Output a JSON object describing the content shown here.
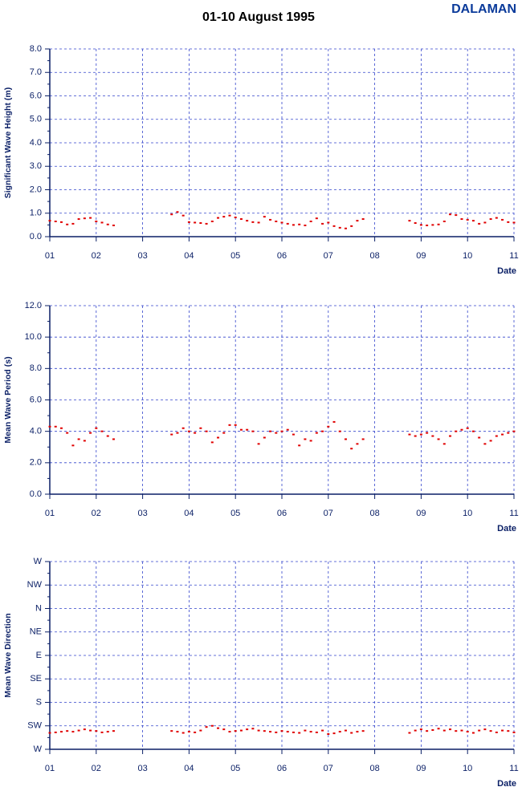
{
  "title": "01-10 August 1995",
  "station": "DALAMAN",
  "chart_data": [
    {
      "type": "scatter",
      "y_label": "Significant Wave Height (m)",
      "x_label": "Date",
      "color": "#e00000",
      "grid": true,
      "xlim": [
        1,
        11
      ],
      "xticks": [
        {
          "value": 1,
          "label": "01"
        },
        {
          "value": 2,
          "label": "02"
        },
        {
          "value": 3,
          "label": "03"
        },
        {
          "value": 4,
          "label": "04"
        },
        {
          "value": 5,
          "label": "05"
        },
        {
          "value": 6,
          "label": "06"
        },
        {
          "value": 7,
          "label": "07"
        },
        {
          "value": 8,
          "label": "08"
        },
        {
          "value": 9,
          "label": "09"
        },
        {
          "value": 10,
          "label": "10"
        },
        {
          "value": 11,
          "label": "11"
        }
      ],
      "ylim": [
        0,
        8
      ],
      "yticks": [
        {
          "value": 0,
          "label": "0.0"
        },
        {
          "value": 1,
          "label": "1.0"
        },
        {
          "value": 2,
          "label": "2.0"
        },
        {
          "value": 3,
          "label": "3.0"
        },
        {
          "value": 4,
          "label": "4.0"
        },
        {
          "value": 5,
          "label": "5.0"
        },
        {
          "value": 6,
          "label": "6.0"
        },
        {
          "value": 7,
          "label": "7.0"
        },
        {
          "value": 8,
          "label": "8.0"
        }
      ],
      "x": [
        1,
        1.125,
        1.25,
        1.375,
        1.5,
        1.625,
        1.75,
        1.875,
        2,
        2.125,
        2.25,
        2.375,
        3.625,
        3.75,
        3.875,
        4,
        4.125,
        4.25,
        4.375,
        4.5,
        4.625,
        4.75,
        4.875,
        5,
        5.125,
        5.25,
        5.375,
        5.5,
        5.625,
        5.75,
        5.875,
        6,
        6.125,
        6.25,
        6.375,
        6.5,
        6.625,
        6.75,
        6.875,
        7,
        7.125,
        7.25,
        7.375,
        7.5,
        7.625,
        7.75,
        8.75,
        8.875,
        9,
        9.125,
        9.25,
        9.375,
        9.5,
        9.625,
        9.75,
        9.875,
        10,
        10.125,
        10.25,
        10.375,
        10.5,
        10.625,
        10.75,
        10.875,
        11
      ],
      "values": [
        0.68,
        0.65,
        0.62,
        0.52,
        0.55,
        0.75,
        0.78,
        0.8,
        0.65,
        0.6,
        0.52,
        0.48,
        0.95,
        1.05,
        0.9,
        0.62,
        0.6,
        0.58,
        0.55,
        0.65,
        0.8,
        0.85,
        0.9,
        0.82,
        0.75,
        0.68,
        0.62,
        0.6,
        0.85,
        0.72,
        0.65,
        0.6,
        0.55,
        0.5,
        0.52,
        0.48,
        0.65,
        0.78,
        0.55,
        0.6,
        0.45,
        0.38,
        0.35,
        0.45,
        0.68,
        0.75,
        0.68,
        0.58,
        0.5,
        0.48,
        0.5,
        0.52,
        0.65,
        0.95,
        0.92,
        0.75,
        0.72,
        0.68,
        0.55,
        0.6,
        0.75,
        0.8,
        0.72,
        0.62,
        0.6
      ]
    },
    {
      "type": "scatter",
      "y_label": "Mean Wave Period (s)",
      "x_label": "Date",
      "color": "#e00000",
      "grid": true,
      "xlim": [
        1,
        11
      ],
      "xticks": [
        {
          "value": 1,
          "label": "01"
        },
        {
          "value": 2,
          "label": "02"
        },
        {
          "value": 3,
          "label": "03"
        },
        {
          "value": 4,
          "label": "04"
        },
        {
          "value": 5,
          "label": "05"
        },
        {
          "value": 6,
          "label": "06"
        },
        {
          "value": 7,
          "label": "07"
        },
        {
          "value": 8,
          "label": "08"
        },
        {
          "value": 9,
          "label": "09"
        },
        {
          "value": 10,
          "label": "10"
        },
        {
          "value": 11,
          "label": "11"
        }
      ],
      "ylim": [
        0,
        12
      ],
      "yticks": [
        {
          "value": 0,
          "label": "0.0"
        },
        {
          "value": 2,
          "label": "2.0"
        },
        {
          "value": 4,
          "label": "4.0"
        },
        {
          "value": 6,
          "label": "6.0"
        },
        {
          "value": 8,
          "label": "8.0"
        },
        {
          "value": 10,
          "label": "10.0"
        },
        {
          "value": 12,
          "label": "12.0"
        }
      ],
      "x": [
        1,
        1.125,
        1.25,
        1.375,
        1.5,
        1.625,
        1.75,
        1.875,
        2,
        2.125,
        2.25,
        2.375,
        3.625,
        3.75,
        3.875,
        4,
        4.125,
        4.25,
        4.375,
        4.5,
        4.625,
        4.75,
        4.875,
        5,
        5.125,
        5.25,
        5.375,
        5.5,
        5.625,
        5.75,
        5.875,
        6,
        6.125,
        6.25,
        6.375,
        6.5,
        6.625,
        6.75,
        6.875,
        7,
        7.125,
        7.25,
        7.375,
        7.5,
        7.625,
        7.75,
        8.75,
        8.875,
        9,
        9.125,
        9.25,
        9.375,
        9.5,
        9.625,
        9.75,
        9.875,
        10,
        10.125,
        10.25,
        10.375,
        10.5,
        10.625,
        10.75,
        10.875,
        11
      ],
      "values": [
        4.3,
        4.3,
        4.2,
        3.9,
        3.1,
        3.5,
        3.4,
        3.9,
        4.2,
        4.0,
        3.7,
        3.5,
        3.8,
        3.9,
        4.2,
        4.0,
        3.9,
        4.2,
        4.0,
        3.3,
        3.6,
        3.9,
        4.4,
        4.4,
        4.1,
        4.1,
        4.0,
        3.2,
        3.6,
        4.0,
        3.9,
        4.0,
        4.1,
        3.8,
        3.1,
        3.5,
        3.4,
        3.9,
        4.0,
        4.3,
        4.6,
        4.0,
        3.5,
        2.9,
        3.2,
        3.5,
        3.8,
        3.7,
        3.8,
        3.9,
        3.7,
        3.5,
        3.2,
        3.7,
        4.0,
        4.1,
        4.2,
        4.0,
        3.6,
        3.2,
        3.4,
        3.7,
        3.8,
        3.9,
        4.0
      ]
    },
    {
      "type": "scatter",
      "y_label": "Mean Wave Direction",
      "x_label": "Date",
      "color": "#e00000",
      "grid": true,
      "xlim": [
        1,
        11
      ],
      "xticks": [
        {
          "value": 1,
          "label": "01"
        },
        {
          "value": 2,
          "label": "02"
        },
        {
          "value": 3,
          "label": "03"
        },
        {
          "value": 4,
          "label": "04"
        },
        {
          "value": 5,
          "label": "05"
        },
        {
          "value": 6,
          "label": "06"
        },
        {
          "value": 7,
          "label": "07"
        },
        {
          "value": 8,
          "label": "08"
        },
        {
          "value": 9,
          "label": "09"
        },
        {
          "value": 10,
          "label": "10"
        },
        {
          "value": 11,
          "label": "11"
        }
      ],
      "ylim": [
        0,
        8
      ],
      "yticks": [
        {
          "value": 0,
          "label": "W"
        },
        {
          "value": 1,
          "label": "SW"
        },
        {
          "value": 2,
          "label": "S"
        },
        {
          "value": 3,
          "label": "SE"
        },
        {
          "value": 4,
          "label": "E"
        },
        {
          "value": 5,
          "label": "NE"
        },
        {
          "value": 6,
          "label": "N"
        },
        {
          "value": 7,
          "label": "NW"
        },
        {
          "value": 8,
          "label": "W"
        }
      ],
      "x": [
        1,
        1.125,
        1.25,
        1.375,
        1.5,
        1.625,
        1.75,
        1.875,
        2,
        2.125,
        2.25,
        2.375,
        3.625,
        3.75,
        3.875,
        4,
        4.125,
        4.25,
        4.375,
        4.5,
        4.625,
        4.75,
        4.875,
        5,
        5.125,
        5.25,
        5.375,
        5.5,
        5.625,
        5.75,
        5.875,
        6,
        6.125,
        6.25,
        6.375,
        6.5,
        6.625,
        6.75,
        6.875,
        7,
        7.125,
        7.25,
        7.375,
        7.5,
        7.625,
        7.75,
        8.75,
        8.875,
        9,
        9.125,
        9.25,
        9.375,
        9.5,
        9.625,
        9.75,
        9.875,
        10,
        10.125,
        10.25,
        10.375,
        10.5,
        10.625,
        10.75,
        10.875,
        11
      ],
      "values": [
        0.7,
        0.72,
        0.75,
        0.78,
        0.75,
        0.8,
        0.85,
        0.8,
        0.78,
        0.72,
        0.75,
        0.78,
        0.78,
        0.75,
        0.7,
        0.75,
        0.72,
        0.8,
        0.95,
        1.0,
        0.9,
        0.85,
        0.75,
        0.78,
        0.8,
        0.85,
        0.88,
        0.8,
        0.78,
        0.75,
        0.72,
        0.78,
        0.75,
        0.72,
        0.7,
        0.8,
        0.75,
        0.72,
        0.8,
        0.65,
        0.68,
        0.75,
        0.8,
        0.7,
        0.75,
        0.78,
        0.7,
        0.8,
        0.85,
        0.78,
        0.82,
        0.88,
        0.8,
        0.85,
        0.78,
        0.8,
        0.75,
        0.7,
        0.8,
        0.85,
        0.78,
        0.72,
        0.8,
        0.78,
        0.72
      ]
    }
  ]
}
